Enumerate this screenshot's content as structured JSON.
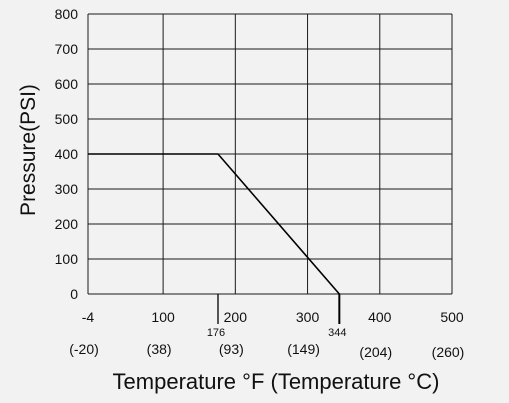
{
  "chart_data": {
    "type": "line",
    "xlabel": "Temperature °F (Temperature °C)",
    "ylabel": "Pressure(PSI)",
    "xlim": [
      -4,
      500
    ],
    "ylim": [
      0,
      800
    ],
    "grid": true,
    "x_ticks": [
      {
        "value": -4,
        "label": "-4",
        "celsius_label": "(-20)"
      },
      {
        "value": 100,
        "label": "100",
        "celsius_label": "(38)"
      },
      {
        "value": 200,
        "label": "200",
        "celsius_label": "(93)"
      },
      {
        "value": 300,
        "label": "300",
        "celsius_label": "(149)"
      },
      {
        "value": 400,
        "label": "400",
        "celsius_label": "(204)"
      },
      {
        "value": 500,
        "label": "500",
        "celsius_label": "(260)"
      }
    ],
    "y_ticks": [
      0,
      100,
      200,
      300,
      400,
      500,
      600,
      700,
      800
    ],
    "annotations": [
      {
        "x": 176,
        "label": "176"
      },
      {
        "x": 344,
        "label": "344"
      }
    ],
    "series": [
      {
        "x": [
          -4,
          176,
          344
        ],
        "y": [
          400,
          400,
          0
        ]
      }
    ],
    "colors": {
      "line": "#000000",
      "grid": "#1a1a1a",
      "background": "#f2f2f2"
    }
  }
}
